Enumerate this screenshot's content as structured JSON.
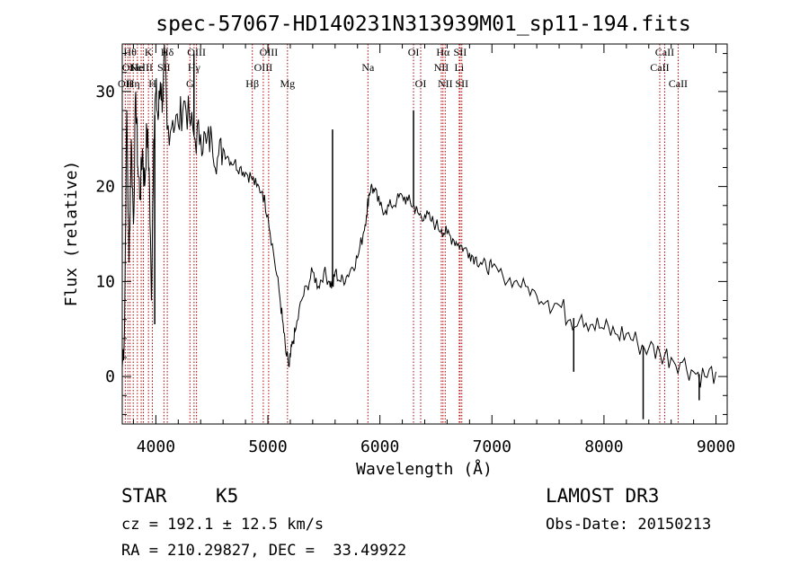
{
  "chart_data": {
    "type": "line",
    "title": "spec-57067-HD140231N313939M01_sp11-194.fits",
    "xlabel": "Wavelength (Å)",
    "ylabel": "Flux (relative)",
    "xlim": [
      3700,
      9100
    ],
    "ylim": [
      -5,
      35
    ],
    "xticks": [
      4000,
      5000,
      6000,
      7000,
      8000,
      9000
    ],
    "yticks": [
      0,
      10,
      20,
      30
    ],
    "grid": false,
    "line_color": "#000000",
    "marker_color": "#b00000",
    "series": [
      {
        "x": [
          3700,
          3720,
          3740,
          3760,
          3780,
          3800,
          3820,
          3840,
          3860,
          3880,
          3900,
          3920,
          3940,
          3960,
          3980,
          4000,
          4020,
          4040,
          4060,
          4080,
          4100,
          4150,
          4200,
          4250,
          4300,
          4350,
          4400,
          4450,
          4500,
          4550,
          4600,
          4650,
          4700,
          4750,
          4800,
          4850,
          4900,
          4950,
          5000,
          5050,
          5100,
          5130,
          5160,
          5190,
          5200,
          5220,
          5250,
          5300,
          5350,
          5400,
          5450,
          5500,
          5550,
          5580,
          5600,
          5650,
          5700,
          5750,
          5800,
          5850,
          5880,
          5900,
          5920,
          5950,
          6000,
          6050,
          6100,
          6150,
          6200,
          6250,
          6300,
          6320,
          6350,
          6400,
          6450,
          6500,
          6550,
          6600,
          6650,
          6700,
          6750,
          6800,
          6850,
          6900,
          6950,
          7000,
          7100,
          7200,
          7300,
          7400,
          7500,
          7600,
          7700,
          7800,
          7900,
          8000,
          8100,
          8200,
          8300,
          8400,
          8500,
          8600,
          8700,
          8800,
          8900,
          9000
        ],
        "y": [
          1,
          5,
          28,
          12,
          25,
          16,
          30,
          22,
          19,
          24,
          20,
          26,
          22,
          8,
          25,
          30,
          27,
          31,
          29,
          34,
          26,
          27,
          26.5,
          29,
          27,
          25,
          25.5,
          24.5,
          25,
          23,
          24,
          23,
          22.5,
          22,
          21.5,
          21,
          20,
          19.5,
          17,
          13,
          9,
          6,
          2.5,
          1,
          2,
          3.5,
          5,
          8,
          9.5,
          11,
          9.5,
          11,
          10,
          9.5,
          11,
          10,
          10.5,
          11.5,
          12.5,
          15,
          17,
          19,
          20,
          19.5,
          18,
          17.5,
          18,
          18.5,
          19,
          18.5,
          18,
          17.5,
          17,
          17,
          16.5,
          16,
          15.5,
          15,
          14.5,
          14,
          13.5,
          13,
          12.5,
          12,
          11.5,
          11.5,
          10.5,
          10,
          9.5,
          8.5,
          8,
          7.5,
          6,
          6.5,
          5.5,
          5,
          4.5,
          4.5,
          3.5,
          3,
          2.5,
          2,
          1.5,
          0.5,
          0,
          0.5
        ]
      }
    ],
    "spikes": [
      {
        "x": 5577,
        "y": 26
      },
      {
        "x": 6300,
        "y": 28
      },
      {
        "x": 4340,
        "y": 34
      },
      {
        "x": 3990,
        "y": 5.5
      },
      {
        "x": 7730,
        "y": 0.5
      },
      {
        "x": 8350,
        "y": -4.5
      },
      {
        "x": 8850,
        "y": -2.5
      }
    ],
    "line_markers": [
      {
        "x": 3727,
        "label": "OII",
        "row": 3
      },
      {
        "x": 3750,
        "label": "OI",
        "row": 2
      },
      {
        "x": 3770,
        "label": "Hθ",
        "row": 1
      },
      {
        "x": 3798,
        "label": "Hη",
        "row": 3
      },
      {
        "x": 3835,
        "label": "He",
        "row": 2
      },
      {
        "x": 3869,
        "label": "NeIII",
        "row": 2
      },
      {
        "x": 3889,
        "label": "",
        "row": 0
      },
      {
        "x": 3934,
        "label": "K",
        "row": 1
      },
      {
        "x": 3969,
        "label": "H",
        "row": 3
      },
      {
        "x": 4072,
        "label": "SII",
        "row": 2
      },
      {
        "x": 4102,
        "label": "Hδ",
        "row": 1
      },
      {
        "x": 4304,
        "label": "G",
        "row": 3
      },
      {
        "x": 4341,
        "label": "Hγ",
        "row": 2
      },
      {
        "x": 4363,
        "label": "OIII",
        "row": 1
      },
      {
        "x": 4861,
        "label": "Hβ",
        "row": 3
      },
      {
        "x": 4959,
        "label": "OIII",
        "row": 2
      },
      {
        "x": 5007,
        "label": "OIII",
        "row": 1
      },
      {
        "x": 5175,
        "label": "Mg",
        "row": 3
      },
      {
        "x": 5893,
        "label": "Na",
        "row": 2
      },
      {
        "x": 6300,
        "label": "OI",
        "row": 1
      },
      {
        "x": 6364,
        "label": "OI",
        "row": 3
      },
      {
        "x": 6548,
        "label": "NII",
        "row": 2
      },
      {
        "x": 6563,
        "label": "Hα",
        "row": 1
      },
      {
        "x": 6583,
        "label": "NII",
        "row": 3
      },
      {
        "x": 6708,
        "label": "Li",
        "row": 2
      },
      {
        "x": 6716,
        "label": "SII",
        "row": 1
      },
      {
        "x": 6731,
        "label": "SII",
        "row": 3
      },
      {
        "x": 8498,
        "label": "CaII",
        "row": 2
      },
      {
        "x": 8542,
        "label": "CaII",
        "row": 1
      },
      {
        "x": 8662,
        "label": "CaII",
        "row": 3
      }
    ]
  },
  "info": {
    "object_class": "STAR",
    "subclass": "K5",
    "survey": "LAMOST DR3",
    "cz": "cz = 192.1 ± 12.5 km/s",
    "obs_date": "Obs-Date: 20150213",
    "coords": "RA = 210.29827, DEC =  33.49922"
  }
}
